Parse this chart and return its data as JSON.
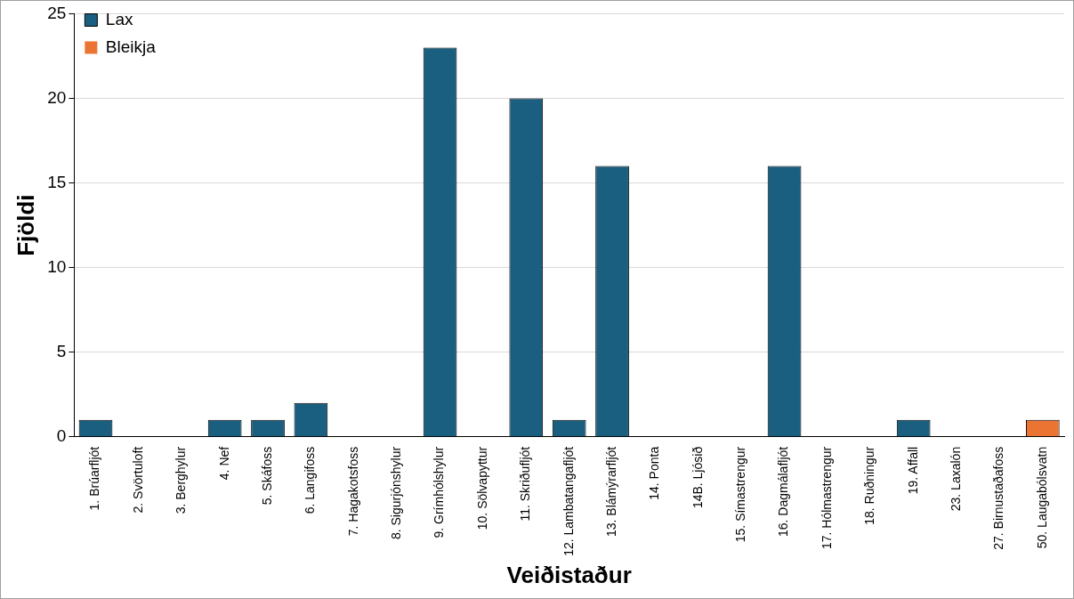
{
  "chart_data": {
    "type": "bar",
    "xlabel": "Veiðistaður",
    "ylabel": "Fjöldi",
    "categories": [
      "1. Brúarfljót",
      "2. Svörtuloft",
      "3. Berghylur",
      "4. Nef",
      "5. Skáfoss",
      "6. Langifoss",
      "7. Hagakotsfoss",
      "8. Sigurjónshylur",
      "9. Grímhólshylur",
      "10. Sölvapyttur",
      "11. Skriðufljót",
      "12. Lambatangafljót",
      "13. Blámýrarfljót",
      "14. Ponta",
      "14B. Ljósið",
      "15. Símastrengur",
      "16. Dagmálafljót",
      "17. Hólmastrengur",
      "18. Ruðningur",
      "19. Affall",
      "23. Laxalón",
      "27. Birnustaðafoss",
      "50. Laugabólsvatn"
    ],
    "series": [
      {
        "name": "Lax",
        "color": "#1a5f80",
        "values": [
          1,
          0,
          0,
          1,
          1,
          2,
          0,
          0,
          23,
          0,
          20,
          1,
          16,
          0,
          0,
          0,
          16,
          0,
          0,
          1,
          0,
          0,
          0
        ]
      },
      {
        "name": "Bleikja",
        "color": "#ec7433",
        "values": [
          0,
          0,
          0,
          0,
          0,
          0,
          0,
          0,
          0,
          0,
          0,
          0,
          0,
          0,
          0,
          0,
          0,
          0,
          0,
          0,
          0,
          0,
          1
        ]
      }
    ],
    "stacked": true,
    "ylim": [
      0,
      25
    ],
    "yticks": [
      0,
      5,
      10,
      15,
      20,
      25
    ],
    "grid": "y",
    "legend": "top left"
  }
}
